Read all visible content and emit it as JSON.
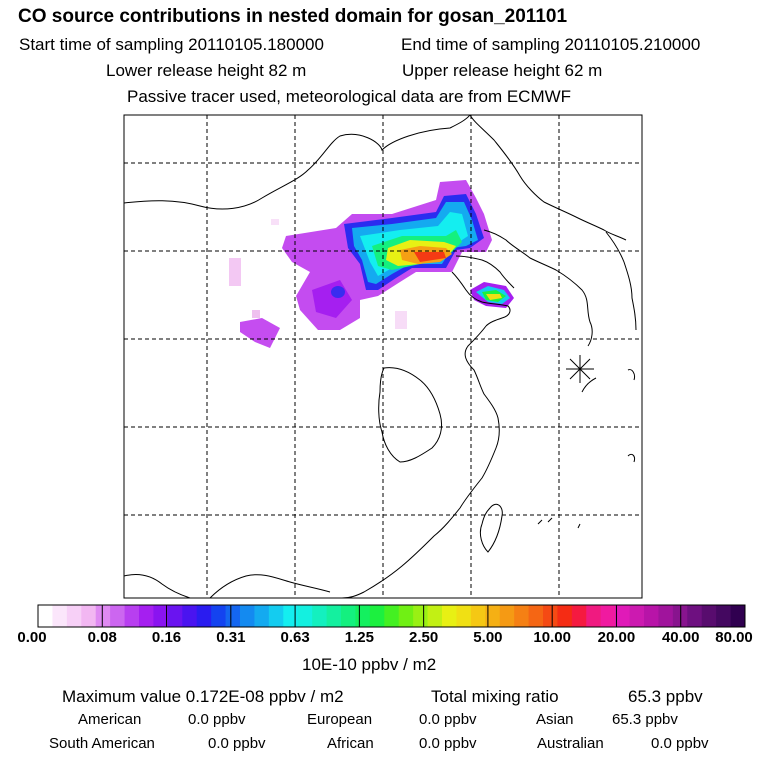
{
  "header": {
    "title": "CO  source contributions in nested domain for gosan_201101",
    "start_label": "Start time of sampling 20110105.180000",
    "end_label": "End time of sampling 20110105.210000",
    "lower_label": "Lower release height   82 m",
    "upper_label": "Upper release height   62 m",
    "note": "Passive tracer used, meteorological data are from ECMWF"
  },
  "colorbar": {
    "labels": [
      "0.00",
      "0.08",
      "0.16",
      "0.31",
      "0.63",
      "1.25",
      "2.50",
      "5.00",
      "10.00",
      "20.00",
      "40.00",
      "80.00"
    ],
    "colors": [
      "#ffffff",
      "#fbe6fb",
      "#f7d0f7",
      "#f2b7f2",
      "#df8af2",
      "#cc66f0",
      "#b83ff0",
      "#a51ff0",
      "#8a14f0",
      "#6a14f0",
      "#4a14f0",
      "#2a1cf0",
      "#1443f0",
      "#1466f0",
      "#148af0",
      "#14aaf0",
      "#14ccf0",
      "#14eef0",
      "#14f0e0",
      "#14f0bf",
      "#14f09f",
      "#14f07f",
      "#14f05f",
      "#1cf03f",
      "#44f022",
      "#70f014",
      "#99f014",
      "#c2f014",
      "#e8f014",
      "#f0e014",
      "#f5c814",
      "#f5b014",
      "#f59a14",
      "#f58014",
      "#f56614",
      "#f54a14",
      "#f52c14",
      "#f51a40",
      "#f01a80",
      "#f01aa0",
      "#e01ab8",
      "#cc1ab0",
      "#b814a8",
      "#a0149c",
      "#88148e",
      "#6e1080",
      "#580c6e",
      "#440860",
      "#300050"
    ],
    "unit": "10E-10 ppbv / m2"
  },
  "footer": {
    "max_label": "Maximum value  0.172E-08 ppbv / m2",
    "total_label": "Total mixing ratio",
    "total_value": "65.3 ppbv",
    "regions": [
      {
        "name": "American",
        "value": "0.0 ppbv"
      },
      {
        "name": "European",
        "value": "0.0 ppbv"
      },
      {
        "name": "Asian",
        "value": "65.3 ppbv"
      },
      {
        "name": "South American",
        "value": "0.0 ppbv"
      },
      {
        "name": "African",
        "value": "0.0 ppbv"
      },
      {
        "name": "Australian",
        "value": "0.0 ppbv"
      }
    ]
  }
}
